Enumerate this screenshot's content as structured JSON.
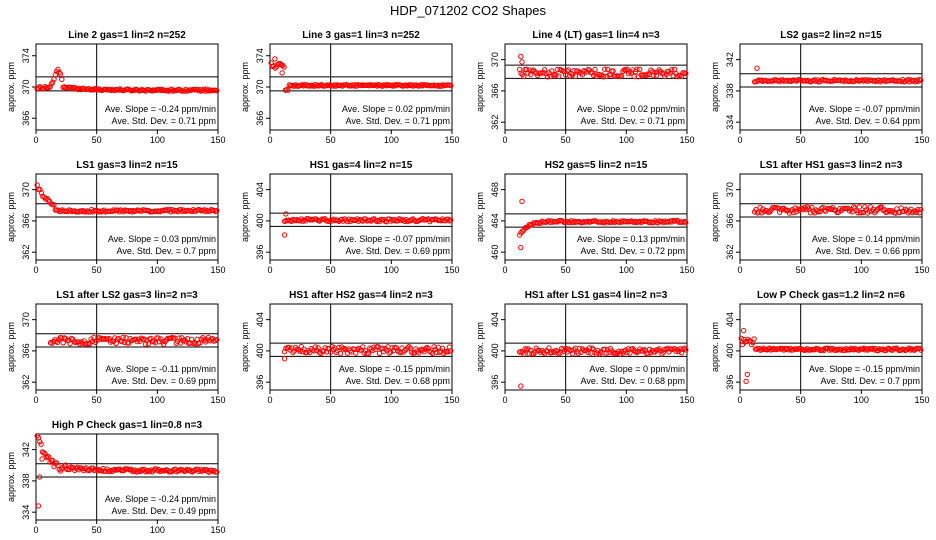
{
  "title": "HDP_071202  CO2 Shapes",
  "ylabel": "approx. ppm",
  "slope_label": "Ave. Slope =",
  "slope_unit": "ppm/min",
  "sd_label": "Ave. Std. Dev. =",
  "sd_unit": "ppm",
  "colors": {
    "points": "#ff0000",
    "axes": "#000000"
  },
  "chart_data": [
    {
      "type": "scatter",
      "title": "Line 2 gas=1 lin=2 n=252",
      "xlim": [
        0,
        150
      ],
      "xticks": [
        0,
        50,
        100,
        150
      ],
      "yticks": [
        366,
        370,
        374
      ],
      "ylim": [
        364.5,
        375.5
      ],
      "hlines": [
        369.5,
        371.3
      ],
      "vline": 50,
      "slope": "-0.24",
      "sd": "0.71",
      "shape": "peakdecay",
      "start": 1,
      "base": 369.6,
      "jitter": 0.12,
      "n": 140
    },
    {
      "type": "scatter",
      "title": "Line 3 gas=1 lin=3 n=252",
      "xlim": [
        0,
        150
      ],
      "xticks": [
        0,
        50,
        100,
        150
      ],
      "yticks": [
        366,
        370,
        374
      ],
      "ylim": [
        364.5,
        375.5
      ],
      "hlines": [
        369.5,
        371.3
      ],
      "vline": 50,
      "slope": "0.02",
      "sd": "0.71",
      "shape": "highdrop",
      "start": 1,
      "base": 370.2,
      "jitter": 0.1,
      "n": 140
    },
    {
      "type": "scatter",
      "title": "Line 4 (LT) gas=1 lin=4 n=3",
      "xlim": [
        0,
        150
      ],
      "xticks": [
        0,
        50,
        100,
        150
      ],
      "yticks": [
        362,
        366,
        370
      ],
      "ylim": [
        361,
        372
      ],
      "hlines": [
        367.6,
        369.3
      ],
      "vline": 50,
      "slope": "0.02",
      "sd": "0.71",
      "shape": "noisy",
      "start": 12,
      "base": 368.3,
      "jitter": 0.5,
      "n": 120
    },
    {
      "type": "scatter",
      "title": "LS2 gas=2 lin=2 n=15",
      "xlim": [
        0,
        150
      ],
      "xticks": [
        0,
        50,
        100,
        150
      ],
      "yticks": [
        334,
        338,
        342
      ],
      "ylim": [
        333,
        344
      ],
      "hlines": [
        338.5,
        340.2
      ],
      "vline": 50,
      "slope": "-0.07",
      "sd": "0.64",
      "shape": "flat",
      "start": 12,
      "base": 339.3,
      "jitter": 0.15,
      "n": 120
    },
    {
      "type": "scatter",
      "title": "LS1 gas=3 lin=2 n=15",
      "xlim": [
        0,
        150
      ],
      "xticks": [
        0,
        50,
        100,
        150
      ],
      "yticks": [
        362,
        366,
        370
      ],
      "ylim": [
        361,
        372
      ],
      "hlines": [
        366.5,
        368.2
      ],
      "vline": 50,
      "slope": "0.03",
      "sd": "0.7",
      "shape": "highdecay",
      "start": 1,
      "base": 367.3,
      "jitter": 0.15,
      "n": 130
    },
    {
      "type": "scatter",
      "title": "HS1 gas=4 lin=2 n=15",
      "xlim": [
        0,
        150
      ],
      "xticks": [
        0,
        50,
        100,
        150
      ],
      "yticks": [
        396,
        400,
        404
      ],
      "ylim": [
        395,
        406
      ],
      "hlines": [
        399.3,
        401.0
      ],
      "vline": 50,
      "slope": "-0.07",
      "sd": "0.69",
      "shape": "flat",
      "start": 12,
      "base": 400.1,
      "jitter": 0.2,
      "n": 120
    },
    {
      "type": "scatter",
      "title": "HS2 gas=5 lin=2 n=15",
      "xlim": [
        0,
        150
      ],
      "xticks": [
        0,
        50,
        100,
        150
      ],
      "yticks": [
        460,
        464,
        468
      ],
      "ylim": [
        459,
        470
      ],
      "hlines": [
        463.2,
        464.9
      ],
      "vline": 50,
      "slope": "0.13",
      "sd": "0.72",
      "shape": "rise",
      "start": 12,
      "base": 463.9,
      "jitter": 0.15,
      "n": 120
    },
    {
      "type": "scatter",
      "title": "LS1 after HS1 gas=3 lin=2 n=3",
      "xlim": [
        0,
        150
      ],
      "xticks": [
        0,
        50,
        100,
        150
      ],
      "yticks": [
        362,
        366,
        370
      ],
      "ylim": [
        361,
        372
      ],
      "hlines": [
        366.5,
        368.2
      ],
      "vline": 50,
      "slope": "0.14",
      "sd": "0.66",
      "shape": "noisy",
      "start": 12,
      "base": 367.4,
      "jitter": 0.4,
      "n": 120
    },
    {
      "type": "scatter",
      "title": "LS1 after LS2 gas=3 lin=2 n=3",
      "xlim": [
        0,
        150
      ],
      "xticks": [
        0,
        50,
        100,
        150
      ],
      "yticks": [
        362,
        366,
        370
      ],
      "ylim": [
        361,
        372
      ],
      "hlines": [
        366.5,
        368.2
      ],
      "vline": 50,
      "slope": "-0.11",
      "sd": "0.69",
      "shape": "noisy",
      "start": 12,
      "base": 367.3,
      "jitter": 0.45,
      "n": 120
    },
    {
      "type": "scatter",
      "title": "HS1 after HS2 gas=4 lin=2 n=3",
      "xlim": [
        0,
        150
      ],
      "xticks": [
        0,
        50,
        100,
        150
      ],
      "yticks": [
        396,
        400,
        404
      ],
      "ylim": [
        395,
        406
      ],
      "hlines": [
        399.3,
        401.0
      ],
      "vline": 50,
      "slope": "-0.15",
      "sd": "0.68",
      "shape": "noisy",
      "start": 12,
      "base": 400.1,
      "jitter": 0.45,
      "n": 120
    },
    {
      "type": "scatter",
      "title": "HS1 after LS1 gas=4 lin=2 n=3",
      "xlim": [
        0,
        150
      ],
      "xticks": [
        0,
        50,
        100,
        150
      ],
      "yticks": [
        396,
        400,
        404
      ],
      "ylim": [
        395,
        406
      ],
      "hlines": [
        399.3,
        401.0
      ],
      "vline": 50,
      "slope": "0",
      "sd": "0.68",
      "shape": "noisy",
      "start": 12,
      "base": 400.0,
      "jitter": 0.4,
      "n": 120
    },
    {
      "type": "scatter",
      "title": "Low P Check gas=1.2 lin=2 n=6",
      "xlim": [
        0,
        150
      ],
      "xticks": [
        0,
        50,
        100,
        150
      ],
      "yticks": [
        396,
        400,
        404
      ],
      "ylim": [
        395,
        406
      ],
      "hlines": [
        399.3,
        401.0
      ],
      "vline": 50,
      "slope": "-0.15",
      "sd": "0.7",
      "shape": "lowcheck",
      "start": 1,
      "base": 400.2,
      "jitter": 0.15,
      "n": 140
    },
    {
      "type": "scatter",
      "title": "High P Check gas=1 lin=0.8 n=3",
      "xlim": [
        0,
        150
      ],
      "xticks": [
        0,
        50,
        100,
        150
      ],
      "yticks": [
        334,
        338,
        342
      ],
      "ylim": [
        333,
        344
      ],
      "hlines": [
        338.5,
        340.2
      ],
      "vline": 50,
      "slope": "-0.24",
      "sd": "0.49",
      "shape": "highcheck",
      "start": 1,
      "base": 339.3,
      "jitter": 0.2,
      "n": 140
    }
  ]
}
